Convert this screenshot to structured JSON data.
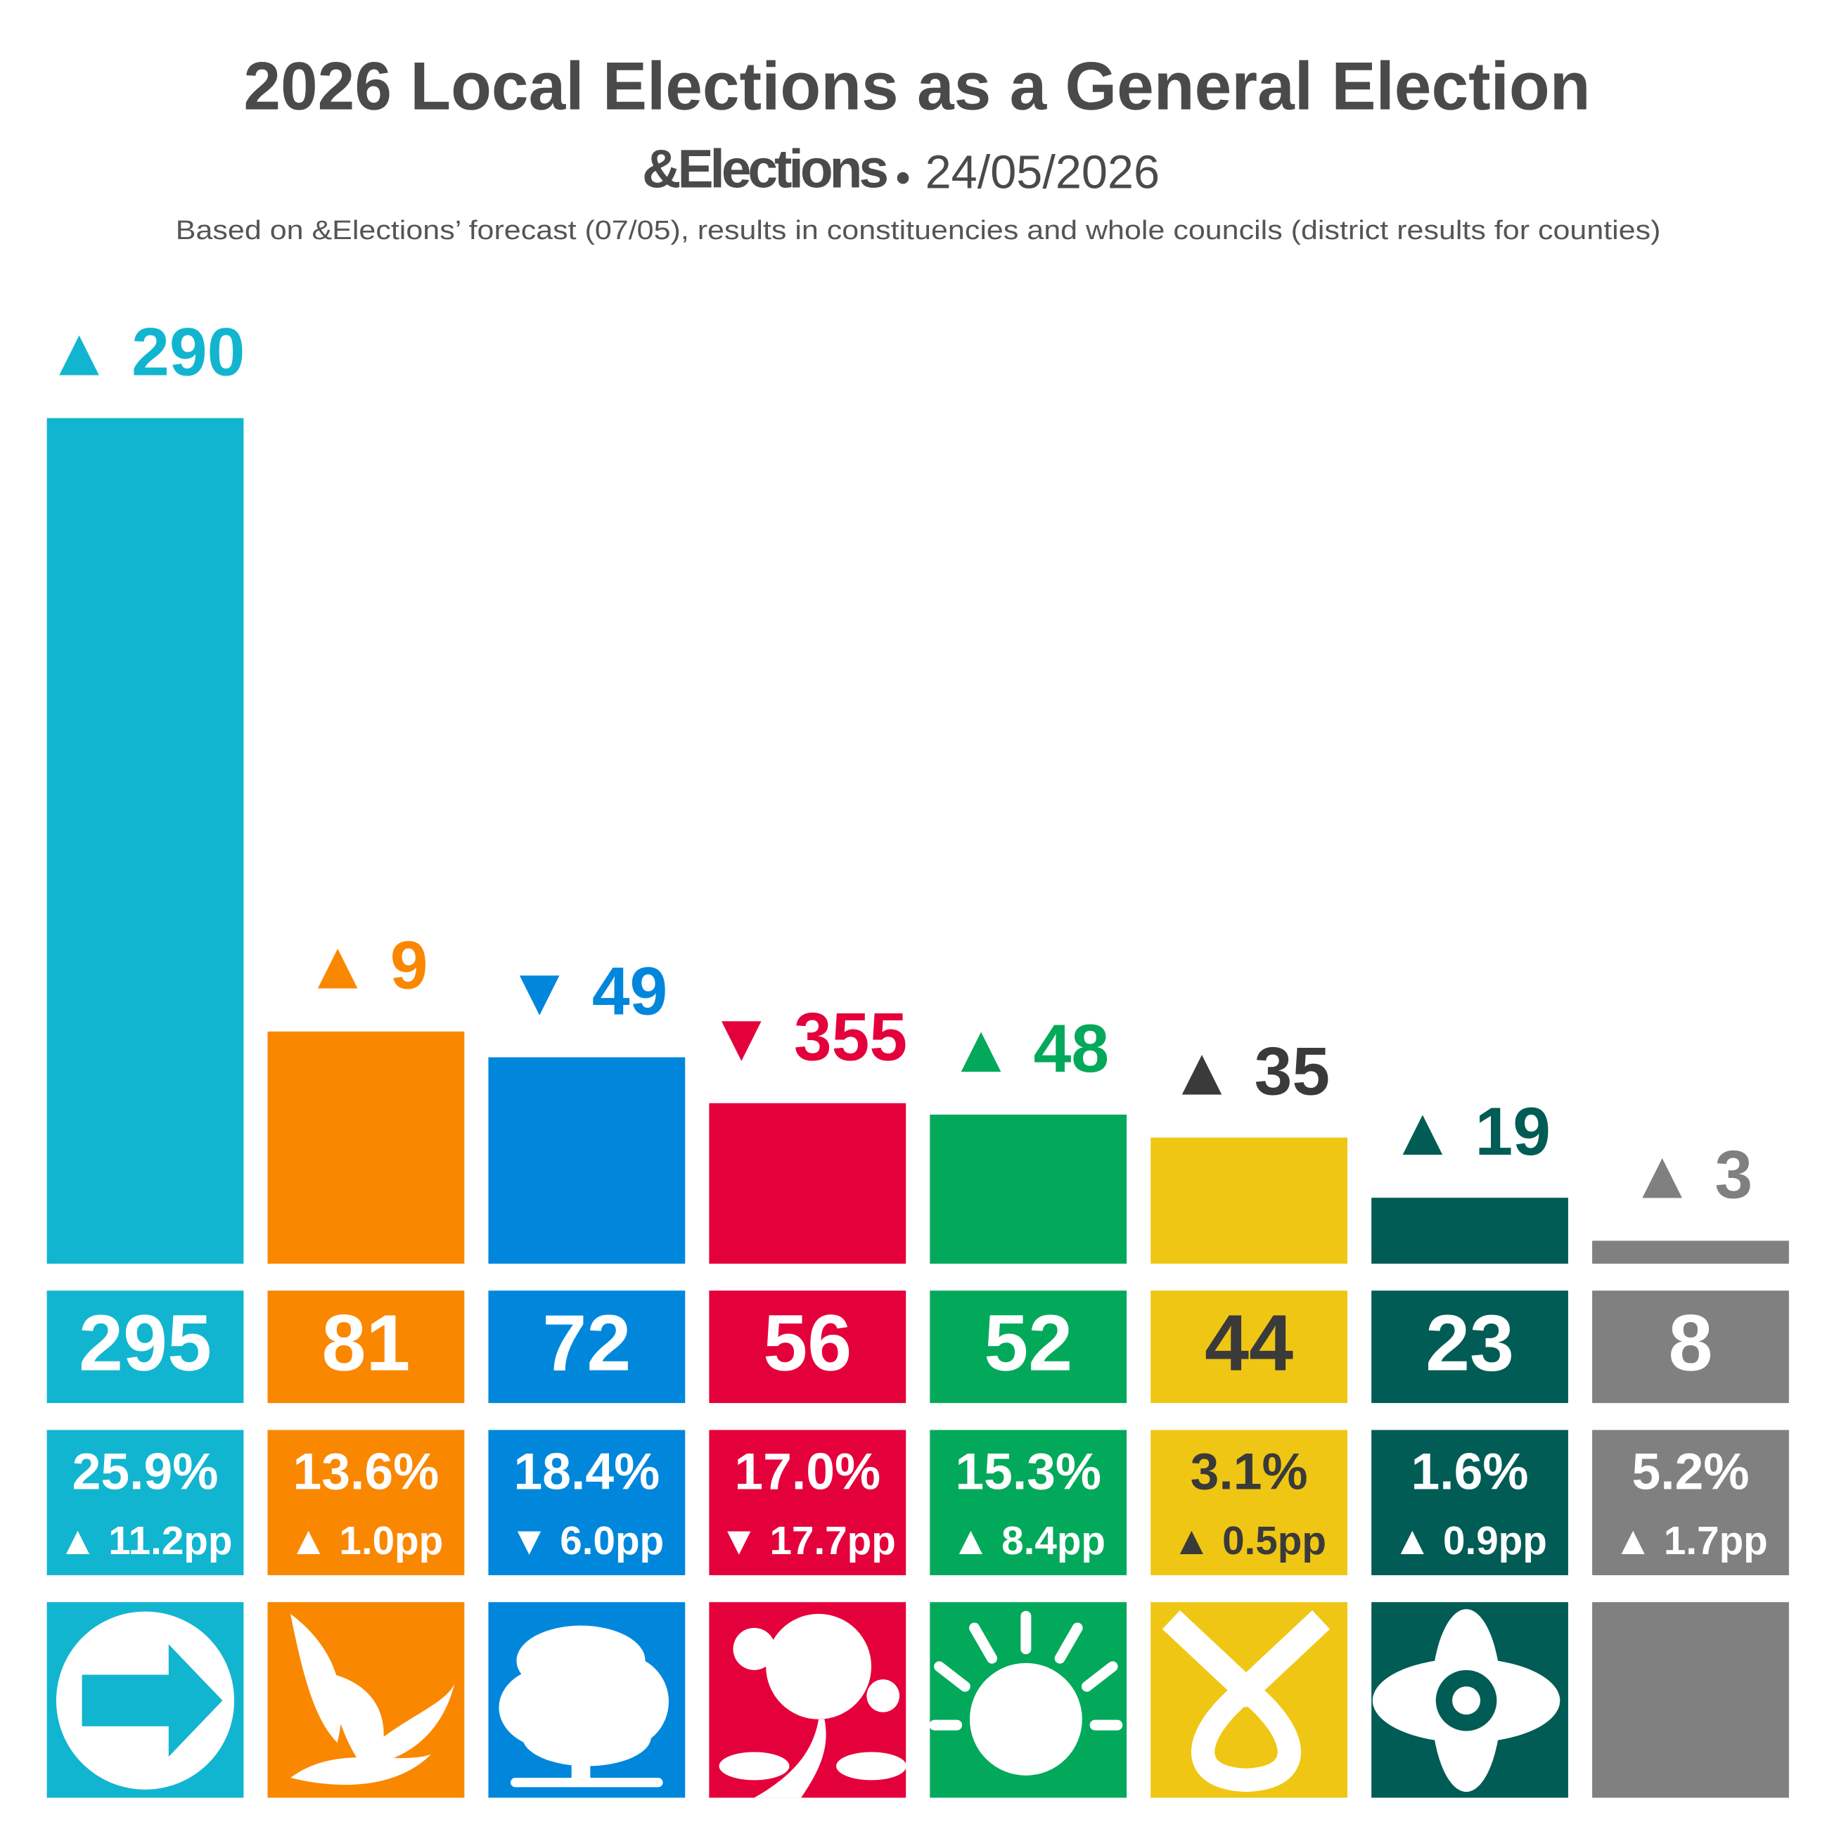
{
  "chart_data": {
    "type": "bar",
    "title": "2026 Local Elections as a General Election",
    "brand": "&Elections",
    "date": "24/05/2026",
    "note": "Based on &Elections’ forecast (07/05), results in constituencies and whole councils (district results for counties)",
    "categories": [
      null,
      null,
      null,
      null,
      null,
      null,
      null,
      null
    ],
    "values": [
      295,
      81,
      72,
      56,
      52,
      44,
      23,
      8
    ],
    "colors": [
      "#12b5cf",
      "#fa8700",
      "#0087dc",
      "#e4003b",
      "#03a95a",
      "#efc614",
      "#005c55",
      "#808080"
    ],
    "label_colors": [
      "#12b5cf",
      "#fa8700",
      "#0087dc",
      "#e4003b",
      "#03a95a",
      "#3a3a3a",
      "#005c55",
      "#808080"
    ],
    "box_text_colors": [
      "#ffffff",
      "#ffffff",
      "#ffffff",
      "#ffffff",
      "#ffffff",
      "#3a3a3a",
      "#ffffff",
      "#ffffff"
    ],
    "seat_change": {
      "values": [
        290,
        9,
        -49,
        -355,
        48,
        35,
        19,
        3
      ],
      "value_labels": [
        "▲ 290",
        "▲ 9",
        "▼ 49",
        "▼ 355",
        "▲ 48",
        "▲ 35",
        "▲ 19",
        "▲ 3"
      ]
    },
    "vote_share": {
      "values": [
        25.9,
        13.6,
        18.4,
        17.0,
        15.3,
        3.1,
        1.6,
        5.2
      ],
      "value_labels": [
        "25.9%",
        "13.6%",
        "18.4%",
        "17.0%",
        "15.3%",
        "3.1%",
        "1.6%",
        "5.2%"
      ]
    },
    "vote_change": {
      "values": [
        11.2,
        1.0,
        -6.0,
        -17.7,
        8.4,
        0.5,
        0.9,
        1.7
      ],
      "value_labels": [
        "▲ 11.2pp",
        "▲ 1.0pp",
        "▼ 6.0pp",
        "▼ 17.7pp",
        "▲ 8.4pp",
        "▲ 0.5pp",
        "▲ 0.9pp",
        "▲ 1.7pp"
      ]
    }
  }
}
